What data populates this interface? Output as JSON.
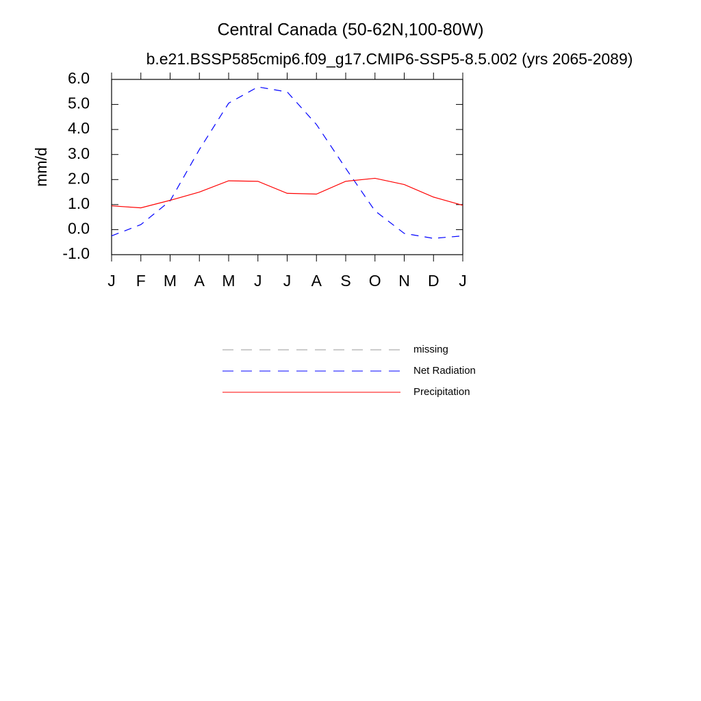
{
  "chart_data": {
    "type": "line",
    "title": "Central Canada (50-62N,100-80W)",
    "subtitle": "b.e21.BSSP585cmip6.f09_g17.CMIP6-SSP5-8.5.002 (yrs 2065-2089)",
    "y_label": "mm/d",
    "categories": [
      "J",
      "F",
      "M",
      "A",
      "M",
      "J",
      "J",
      "A",
      "S",
      "O",
      "N",
      "D",
      "J"
    ],
    "series": [
      {
        "name": "missing",
        "color": "#999999",
        "dash": true,
        "values": [
          null,
          null,
          null,
          null,
          null,
          null,
          null,
          null,
          null,
          null,
          null,
          null,
          null
        ]
      },
      {
        "name": "Net Radiation",
        "color": "#0000ff",
        "dash": true,
        "values": [
          -0.25,
          0.2,
          1.15,
          3.2,
          5.05,
          5.7,
          5.5,
          4.2,
          2.45,
          0.75,
          -0.15,
          -0.35,
          -0.25
        ]
      },
      {
        "name": "Precipitation",
        "color": "#ff0000",
        "dash": false,
        "values": [
          0.95,
          0.87,
          1.17,
          1.5,
          1.95,
          1.93,
          1.45,
          1.42,
          1.93,
          2.05,
          1.8,
          1.3,
          0.97
        ]
      }
    ],
    "ylim": [
      -1,
      6
    ],
    "yticks": [
      {
        "value": -1,
        "label": "-1.0"
      },
      {
        "value": 0,
        "label": "0.0"
      },
      {
        "value": 1,
        "label": "1.0"
      },
      {
        "value": 2,
        "label": "2.0"
      },
      {
        "value": 3,
        "label": "3.0"
      },
      {
        "value": 4,
        "label": "4.0"
      },
      {
        "value": 5,
        "label": "5.0"
      },
      {
        "value": 6,
        "label": "6.0"
      }
    ],
    "grid": false
  }
}
